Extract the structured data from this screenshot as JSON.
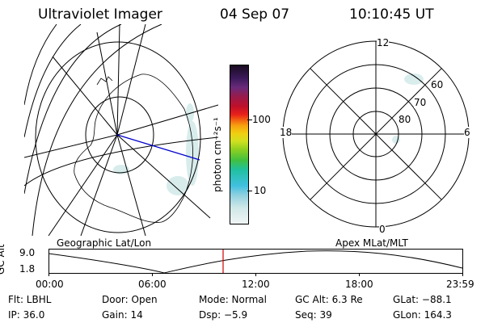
{
  "header": {
    "title": "Ultraviolet Imager",
    "date": "04 Sep 07",
    "time": "10:10:45 UT"
  },
  "colorbar": {
    "ticks": [
      "100",
      "10"
    ],
    "unit_label": "photon cm⁻²s⁻¹",
    "colors": [
      "#1a0a20",
      "#3a1a5a",
      "#6a2a7a",
      "#9a1a4a",
      "#c0102a",
      "#e8201a",
      "#f46a10",
      "#f8a010",
      "#f0d010",
      "#d0e020",
      "#90d020",
      "#40c040",
      "#20c0a0",
      "#40c0e0",
      "#90d0e0",
      "#d0e8e8",
      "#f0f4f4"
    ]
  },
  "polar_plot": {
    "mlt_labels": [
      "12",
      "18",
      "6",
      "0"
    ],
    "lat_labels": [
      "60",
      "70",
      "80"
    ]
  },
  "timeline": {
    "left_title": "Geographic Lat/Lon",
    "right_title": "Apex MLat/MLT",
    "yaxis_label": "GC Alt",
    "y_ticks": [
      "9.0",
      "1.8"
    ],
    "x_ticks": [
      "00:00",
      "06:00",
      "12:00",
      "18:00",
      "23:59"
    ],
    "marker_color": "#d00000"
  },
  "footer": {
    "filter": "Flt: LBHL",
    "door": "Door: Open",
    "mode": "Mode: Normal",
    "gc_alt": "GC Alt: 6.3 Re",
    "glat": "GLat: −88.1",
    "ip": "IP: 36.0",
    "gain": "Gain: 14",
    "dsp": "Dsp:  −5.9",
    "seq": "Seq: 39",
    "glon": "GLon: 164.3"
  }
}
